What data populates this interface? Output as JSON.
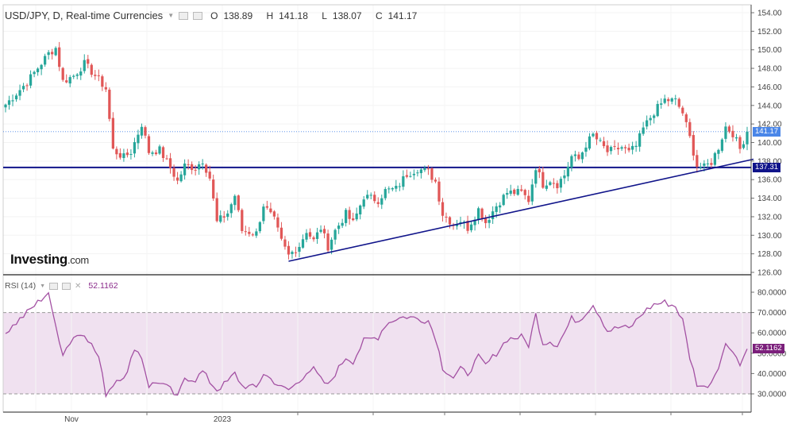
{
  "header": {
    "symbol": "USD/JPY",
    "interval": "D",
    "source": "Real-time Currencies",
    "open_label": "O",
    "open": "138.89",
    "high_label": "H",
    "high": "141.18",
    "low_label": "L",
    "low": "138.07",
    "close_label": "C",
    "close": "141.17"
  },
  "logo": {
    "name": "Investing",
    "domain": ".com"
  },
  "rsi": {
    "label": "RSI (14)",
    "value": "52.1162"
  },
  "badges": {
    "last_price": "141.17",
    "support_line": "137.31"
  },
  "colors": {
    "up": "#26a69a",
    "down": "#e15757",
    "support": "#10148a",
    "rsi_line": "#a351a3",
    "rsi_band": "#f0e1f0",
    "last_price_badge": "#4a86e8",
    "support_badge": "#10148a",
    "rsi_badge": "#7b1f7b"
  },
  "chart_data": [
    {
      "type": "candlestick",
      "title": "USD/JPY, D, Real-time Currencies",
      "ylim": [
        126,
        154.5
      ],
      "y_ticks": [
        "126.00",
        "128.00",
        "130.00",
        "132.00",
        "134.00",
        "136.00",
        "138.00",
        "140.00",
        "142.00",
        "144.00",
        "146.00",
        "148.00",
        "150.00",
        "152.00",
        "154.00"
      ],
      "x_ticks": [
        "Nov",
        "2023"
      ],
      "anchors": [
        [
          0,
          144.1
        ],
        [
          6,
          146.5
        ],
        [
          12,
          149.6
        ],
        [
          14,
          150.2
        ],
        [
          16,
          146.6
        ],
        [
          19,
          147.2
        ],
        [
          22,
          148.5
        ],
        [
          26,
          146.8
        ],
        [
          28,
          145.8
        ],
        [
          30,
          139.2
        ],
        [
          33,
          138.4
        ],
        [
          35,
          139.0
        ],
        [
          38,
          142.0
        ],
        [
          40,
          139.0
        ],
        [
          43,
          139.2
        ],
        [
          46,
          137.3
        ],
        [
          48,
          135.8
        ],
        [
          50,
          137.5
        ],
        [
          53,
          137.3
        ],
        [
          55,
          138.1
        ],
        [
          57,
          136.2
        ],
        [
          59,
          131.4
        ],
        [
          62,
          132.4
        ],
        [
          64,
          134.3
        ],
        [
          66,
          130.5
        ],
        [
          70,
          130.2
        ],
        [
          72,
          133.3
        ],
        [
          75,
          131.6
        ],
        [
          77,
          129.3
        ],
        [
          79,
          127.8
        ],
        [
          82,
          128.9
        ],
        [
          84,
          130.5
        ],
        [
          86,
          129.4
        ],
        [
          88,
          130.8
        ],
        [
          90,
          128.8
        ],
        [
          92,
          130.5
        ],
        [
          95,
          132.3
        ],
        [
          97,
          131.3
        ],
        [
          100,
          134.2
        ],
        [
          104,
          133.8
        ],
        [
          106,
          134.8
        ],
        [
          109,
          135.0
        ],
        [
          112,
          136.6
        ],
        [
          115,
          137.2
        ],
        [
          118,
          136.8
        ],
        [
          120,
          135.8
        ],
        [
          122,
          132.3
        ],
        [
          125,
          131.2
        ],
        [
          127,
          131.6
        ],
        [
          129,
          130.8
        ],
        [
          132,
          132.8
        ],
        [
          134,
          131.4
        ],
        [
          137,
          133.2
        ],
        [
          140,
          134.6
        ],
        [
          144,
          134.6
        ],
        [
          146,
          133.8
        ],
        [
          148,
          137.4
        ],
        [
          150,
          135.5
        ],
        [
          152,
          136.0
        ],
        [
          154,
          135.5
        ],
        [
          156,
          136.5
        ],
        [
          158,
          138.5
        ],
        [
          160,
          138.2
        ],
        [
          162,
          139.8
        ],
        [
          164,
          140.8
        ],
        [
          166,
          139.9
        ],
        [
          168,
          139.0
        ],
        [
          170,
          139.2
        ],
        [
          172,
          139.5
        ],
        [
          174,
          138.9
        ],
        [
          176,
          139.6
        ],
        [
          178,
          141.5
        ],
        [
          181,
          143.3
        ],
        [
          184,
          144.6
        ],
        [
          187,
          144.5
        ],
        [
          189,
          143.2
        ],
        [
          191,
          140.5
        ],
        [
          193,
          137.5
        ],
        [
          195,
          137.3
        ],
        [
          197,
          137.9
        ],
        [
          199,
          139.5
        ],
        [
          201,
          141.7
        ],
        [
          203,
          141.0
        ],
        [
          205,
          139.3
        ],
        [
          207,
          141.17
        ]
      ],
      "support_level": 137.31,
      "trendline": {
        "from_index": 79,
        "from": 127.2,
        "to_index": 207,
        "to": 138.2
      },
      "last_price": 141.17
    },
    {
      "type": "line",
      "title": "RSI (14)",
      "ylim": [
        25,
        82
      ],
      "y_ticks": [
        "30.0000",
        "40.0000",
        "50.0000",
        "60.0000",
        "70.0000",
        "80.0000"
      ],
      "bands": [
        30,
        70
      ],
      "anchors": [
        [
          0,
          60
        ],
        [
          6,
          70
        ],
        [
          12,
          80
        ],
        [
          13,
          70
        ],
        [
          16,
          50
        ],
        [
          19,
          58
        ],
        [
          22,
          60
        ],
        [
          26,
          48
        ],
        [
          28,
          30
        ],
        [
          31,
          37
        ],
        [
          34,
          40
        ],
        [
          36,
          53
        ],
        [
          38,
          48
        ],
        [
          40,
          34
        ],
        [
          43,
          36
        ],
        [
          46,
          32
        ],
        [
          48,
          28
        ],
        [
          50,
          38
        ],
        [
          53,
          37
        ],
        [
          55,
          41
        ],
        [
          57,
          36
        ],
        [
          59,
          32
        ],
        [
          62,
          36
        ],
        [
          64,
          40
        ],
        [
          66,
          34
        ],
        [
          70,
          33
        ],
        [
          72,
          40
        ],
        [
          75,
          36
        ],
        [
          77,
          33
        ],
        [
          79,
          32
        ],
        [
          82,
          36
        ],
        [
          84,
          41
        ],
        [
          86,
          42
        ],
        [
          88,
          37
        ],
        [
          90,
          34
        ],
        [
          92,
          40
        ],
        [
          95,
          48
        ],
        [
          97,
          46
        ],
        [
          100,
          56
        ],
        [
          104,
          58
        ],
        [
          106,
          64
        ],
        [
          109,
          67
        ],
        [
          112,
          68
        ],
        [
          115,
          67
        ],
        [
          118,
          66
        ],
        [
          120,
          58
        ],
        [
          122,
          43
        ],
        [
          125,
          38
        ],
        [
          127,
          42
        ],
        [
          129,
          40
        ],
        [
          132,
          48
        ],
        [
          134,
          44
        ],
        [
          137,
          50
        ],
        [
          140,
          57
        ],
        [
          144,
          58
        ],
        [
          146,
          54
        ],
        [
          148,
          69
        ],
        [
          150,
          55
        ],
        [
          152,
          56
        ],
        [
          154,
          54
        ],
        [
          156,
          60
        ],
        [
          158,
          67
        ],
        [
          160,
          66
        ],
        [
          162,
          70
        ],
        [
          164,
          74
        ],
        [
          166,
          68
        ],
        [
          168,
          61
        ],
        [
          170,
          62
        ],
        [
          172,
          63
        ],
        [
          174,
          62
        ],
        [
          176,
          66
        ],
        [
          178,
          70
        ],
        [
          181,
          74
        ],
        [
          184,
          75
        ],
        [
          187,
          73
        ],
        [
          189,
          66
        ],
        [
          191,
          48
        ],
        [
          193,
          35
        ],
        [
          195,
          33
        ],
        [
          197,
          36
        ],
        [
          199,
          44
        ],
        [
          201,
          54
        ],
        [
          203,
          52
        ],
        [
          205,
          44
        ],
        [
          207,
          52.1162
        ]
      ],
      "last_value": 52.1162
    }
  ]
}
